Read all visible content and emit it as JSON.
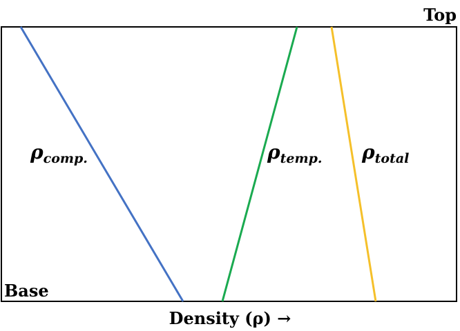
{
  "diagram": {
    "top_label": "Top",
    "base_label": "Base",
    "axis_label": "Density (ρ) →",
    "lines": [
      {
        "symbol": "ρ",
        "subscript": "comp."
      },
      {
        "symbol": "ρ",
        "subscript": "temp."
      },
      {
        "symbol": "ρ",
        "subscript": "total"
      }
    ]
  }
}
